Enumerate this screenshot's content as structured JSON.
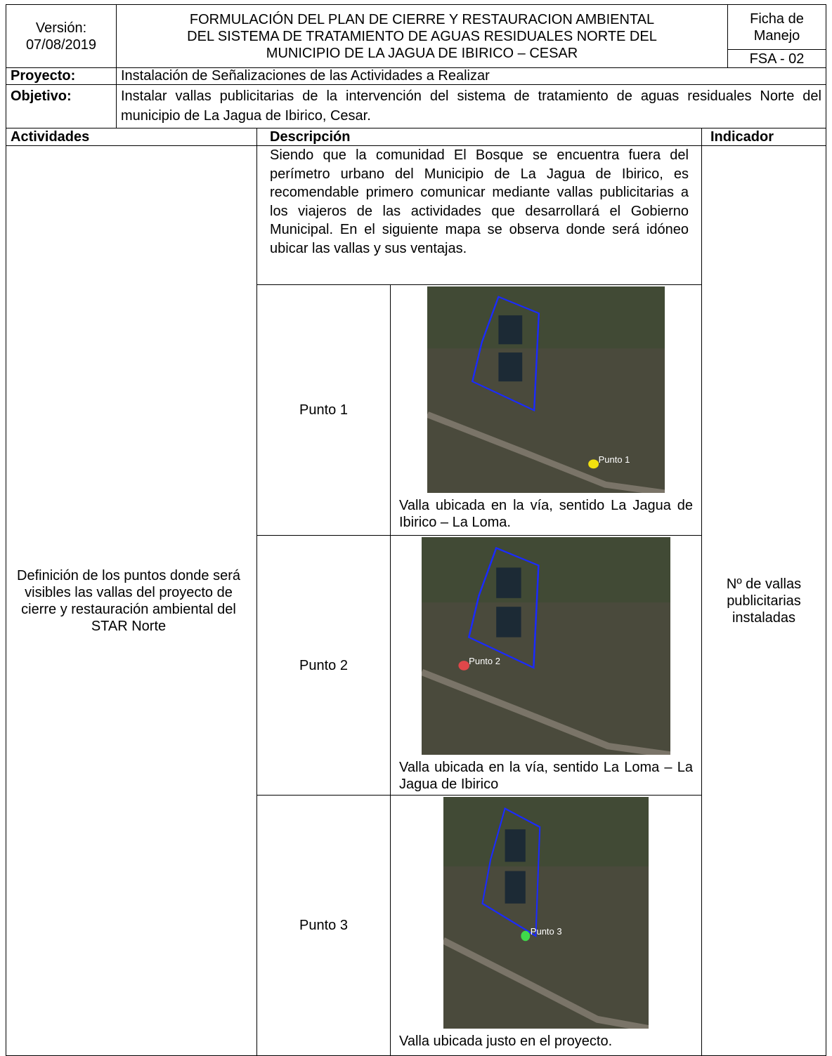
{
  "header": {
    "version_label": "Versión:",
    "version_date": "07/08/2019",
    "title_lines": [
      "FORMULACIÓN DEL PLAN DE CIERRE  Y RESTAURACION AMBIENTAL",
      "DEL SISTEMA DE TRATAMIENTO DE AGUAS RESIDUALES NORTE DEL",
      "MUNICIPIO DE LA JAGUA DE IBIRICO – CESAR"
    ],
    "sheet_type": "Ficha de Manejo",
    "code": "FSA - 02"
  },
  "project": {
    "label": "Proyecto:",
    "text": "Instalación de Señalizaciones de las Actividades a Realizar"
  },
  "objective": {
    "label": "Objetivo:",
    "text": "Instalar vallas publicitarias de la intervención del sistema de tratamiento de aguas residuales Norte del municipio de La Jagua de Ibirico, Cesar."
  },
  "table": {
    "headers": [
      "Actividades",
      "Descripción",
      "Indicador"
    ],
    "activity": "Definición de los puntos donde será visibles las vallas del proyecto de cierre y restauración ambiental del STAR Norte",
    "description": "Siendo que la comunidad El Bosque se encuentra fuera del perímetro urbano del Municipio de La Jagua de Ibirico, es recomendable primero comunicar mediante vallas publicitarias a los viajeros de las actividades que desarrollará el Gobierno Municipal. En el siguiente mapa se observa donde será idóneo ubicar las vallas y sus ventajas.",
    "points": [
      {
        "label": "Punto 1",
        "map_label": "Punto 1",
        "pin_color": "#f2e10f",
        "caption": "Valla ubicada en la vía, sentido La Jagua de Ibirico – La Loma."
      },
      {
        "label": "Punto 2",
        "map_label": "Punto 2",
        "pin_color": "#e0474a",
        "caption": "Valla ubicada en la vía, sentido La Loma – La Jagua de Ibirico"
      },
      {
        "label": "Punto 3",
        "map_label": "Punto 3",
        "pin_color": "#3fd94a",
        "caption": "Valla ubicada justo en el proyecto."
      }
    ],
    "indicator": "Nº de vallas publicitarias instaladas"
  }
}
